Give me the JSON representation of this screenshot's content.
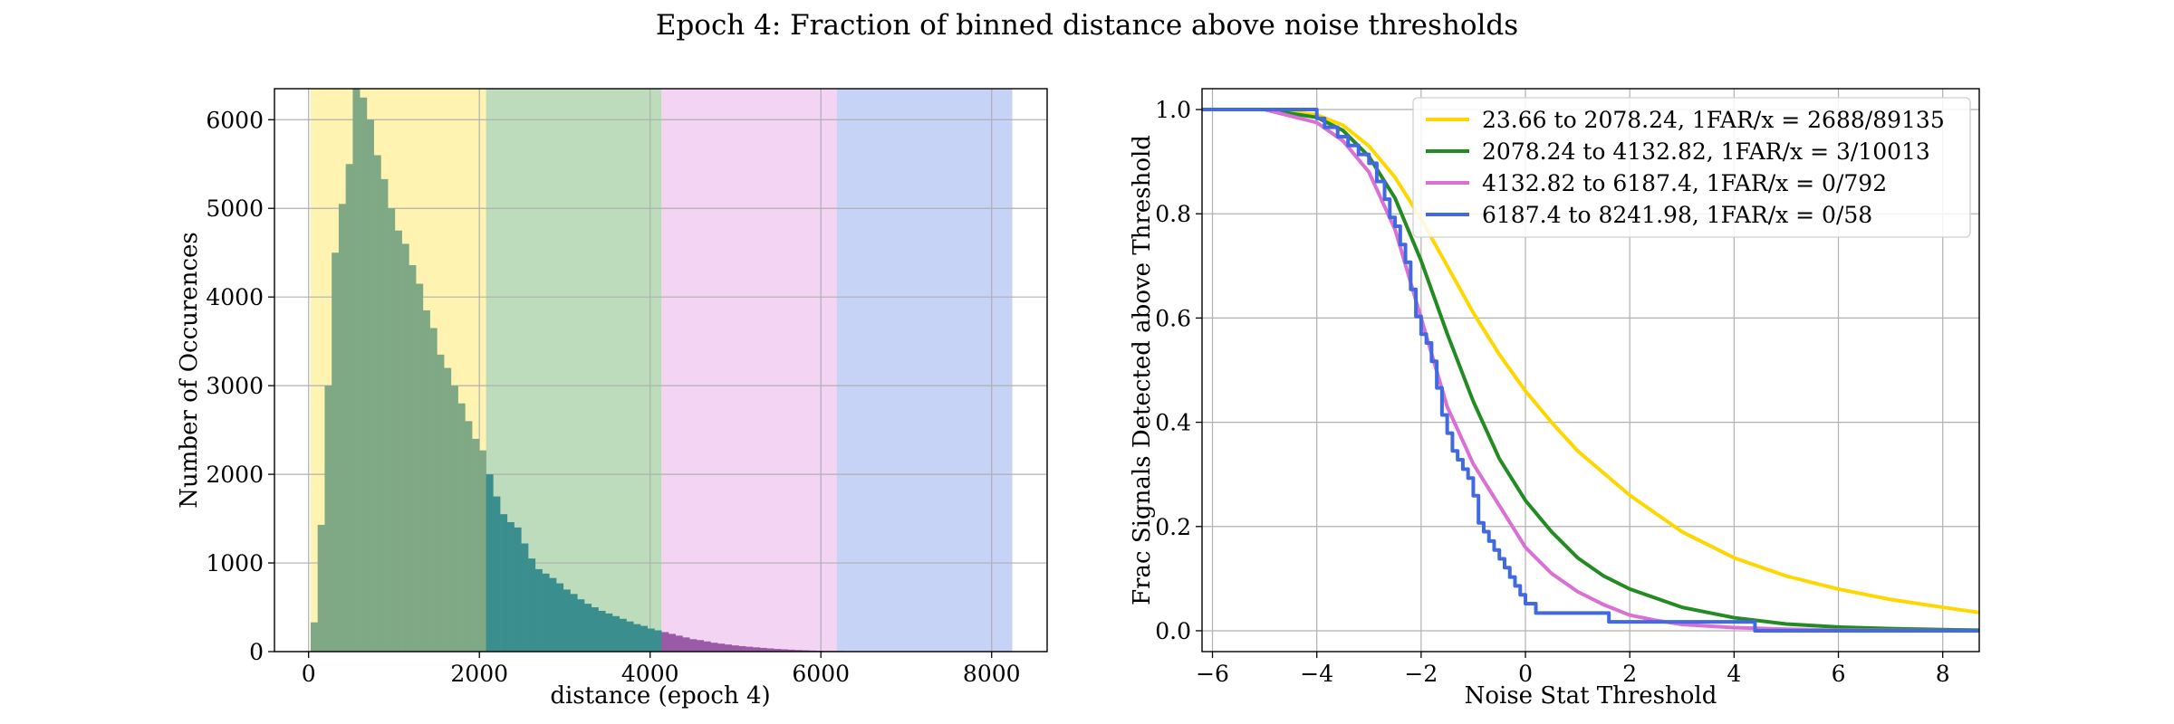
{
  "figure_title": "Epoch 4: Fraction of binned distance above noise thresholds",
  "colors": {
    "yellow": "#ffd700",
    "green": "#228b22",
    "violet": "#da70d6",
    "blue": "#4169e1",
    "hist_a": "#7fa884",
    "hist_b": "#3a8e8e"
  },
  "chart_data": [
    {
      "type": "bar",
      "subtype": "histogram",
      "xlabel": "distance (epoch 4)",
      "ylabel": "Number of Occurences",
      "xlim": [
        -400,
        8650
      ],
      "ylim": [
        0,
        6350
      ],
      "xticks": [
        0,
        2000,
        4000,
        6000,
        8000
      ],
      "yticks": [
        0,
        1000,
        2000,
        3000,
        4000,
        5000,
        6000
      ],
      "grid": true,
      "bands": [
        {
          "from": 23.66,
          "to": 2078.24,
          "color": "yellow"
        },
        {
          "from": 2078.24,
          "to": 4132.82,
          "color": "green"
        },
        {
          "from": 4132.82,
          "to": 6187.4,
          "color": "violet"
        },
        {
          "from": 6187.4,
          "to": 8241.98,
          "color": "blue"
        }
      ],
      "bin_width": 82.18,
      "bin_start": 23.66,
      "counts": [
        330,
        1430,
        3000,
        4500,
        5050,
        5500,
        6350,
        6250,
        6000,
        5600,
        5330,
        5000,
        4750,
        4600,
        4360,
        4150,
        3850,
        3650,
        3350,
        3200,
        3000,
        2800,
        2600,
        2400,
        2270,
        2000,
        1750,
        1550,
        1460,
        1400,
        1220,
        1050,
        930,
        880,
        830,
        770,
        700,
        650,
        590,
        540,
        500,
        460,
        430,
        400,
        370,
        340,
        310,
        290,
        260,
        240,
        220,
        200,
        180,
        160,
        140,
        130,
        115,
        100,
        90,
        80,
        70,
        62,
        55,
        48,
        42,
        36,
        30,
        26,
        22,
        18,
        15,
        12,
        10,
        8,
        7,
        6,
        5,
        4,
        3,
        3,
        2,
        2,
        2,
        1,
        1,
        1,
        1,
        1,
        1,
        1,
        1,
        0,
        0,
        0,
        0,
        0,
        0,
        0,
        0,
        0
      ]
    },
    {
      "type": "line",
      "xlabel": "Noise Stat Threshold",
      "ylabel": "Frac Signals Detected above Threshold",
      "xlim": [
        -6.2,
        8.7
      ],
      "ylim": [
        -0.04,
        1.04
      ],
      "xticks": [
        -6,
        -4,
        -2,
        0,
        2,
        4,
        6,
        8
      ],
      "xticklabels": [
        "−6",
        "−4",
        "−2",
        "0",
        "2",
        "4",
        "6",
        "8"
      ],
      "yticks": [
        0.0,
        0.2,
        0.4,
        0.6,
        0.8,
        1.0
      ],
      "yticklabels": [
        "0.0",
        "0.2",
        "0.4",
        "0.6",
        "0.8",
        "1.0"
      ],
      "grid": true,
      "legend_position": "top-right",
      "series": [
        {
          "name": "23.66 to 2078.24, 1FAR/x = 2688/89135",
          "color": "yellow",
          "x": [
            -6.2,
            -5,
            -4,
            -3.5,
            -3,
            -2.5,
            -2,
            -1.5,
            -1,
            -0.5,
            0,
            0.5,
            1,
            2,
            3,
            4,
            5,
            6,
            7,
            8,
            8.7
          ],
          "y": [
            1.0,
            1.0,
            0.99,
            0.97,
            0.93,
            0.87,
            0.79,
            0.7,
            0.61,
            0.53,
            0.46,
            0.4,
            0.345,
            0.26,
            0.19,
            0.14,
            0.105,
            0.08,
            0.06,
            0.045,
            0.035
          ]
        },
        {
          "name": "2078.24 to 4132.82, 1FAR/x = 3/10013",
          "color": "green",
          "x": [
            -6.2,
            -5,
            -4,
            -3.5,
            -3,
            -2.5,
            -2,
            -1.5,
            -1,
            -0.5,
            0,
            0.5,
            1,
            1.5,
            2,
            3,
            4,
            5,
            6,
            7,
            8,
            8.7
          ],
          "y": [
            1.0,
            1.0,
            0.985,
            0.96,
            0.91,
            0.83,
            0.71,
            0.57,
            0.44,
            0.33,
            0.25,
            0.19,
            0.14,
            0.105,
            0.08,
            0.045,
            0.025,
            0.013,
            0.007,
            0.004,
            0.002,
            0.001
          ]
        },
        {
          "name": "4132.82 to 6187.4, 1FAR/x = 0/792",
          "color": "violet",
          "x": [
            -6.2,
            -5,
            -4,
            -3.5,
            -3,
            -2.5,
            -2,
            -1.5,
            -1,
            -0.5,
            0,
            0.5,
            1,
            1.5,
            2,
            2.5,
            3,
            4,
            5,
            6,
            8.7
          ],
          "y": [
            1.0,
            1.0,
            0.975,
            0.94,
            0.88,
            0.77,
            0.6,
            0.43,
            0.32,
            0.24,
            0.16,
            0.11,
            0.075,
            0.05,
            0.03,
            0.02,
            0.012,
            0.006,
            0.003,
            0.001,
            0.0
          ]
        },
        {
          "name": "6187.4 to 8241.98, 1FAR/x = 0/58",
          "color": "blue",
          "step": true,
          "x": [
            -6.2,
            -4.0,
            -3.85,
            -3.6,
            -3.4,
            -3.2,
            -3.0,
            -2.85,
            -2.7,
            -2.6,
            -2.5,
            -2.4,
            -2.3,
            -2.2,
            -2.1,
            -2.0,
            -1.9,
            -1.8,
            -1.7,
            -1.6,
            -1.5,
            -1.4,
            -1.3,
            -1.2,
            -1.1,
            -1.0,
            -0.9,
            -0.8,
            -0.7,
            -0.6,
            -0.5,
            -0.4,
            -0.3,
            -0.2,
            -0.1,
            0.0,
            0.2,
            1.6,
            4.4,
            8.7
          ],
          "y": [
            1.0,
            0.983,
            0.966,
            0.948,
            0.931,
            0.914,
            0.897,
            0.862,
            0.828,
            0.793,
            0.776,
            0.741,
            0.707,
            0.655,
            0.603,
            0.569,
            0.552,
            0.517,
            0.466,
            0.414,
            0.379,
            0.345,
            0.328,
            0.31,
            0.293,
            0.259,
            0.207,
            0.19,
            0.172,
            0.155,
            0.138,
            0.121,
            0.103,
            0.086,
            0.069,
            0.052,
            0.034,
            0.017,
            0.0,
            0.0
          ]
        }
      ]
    }
  ]
}
